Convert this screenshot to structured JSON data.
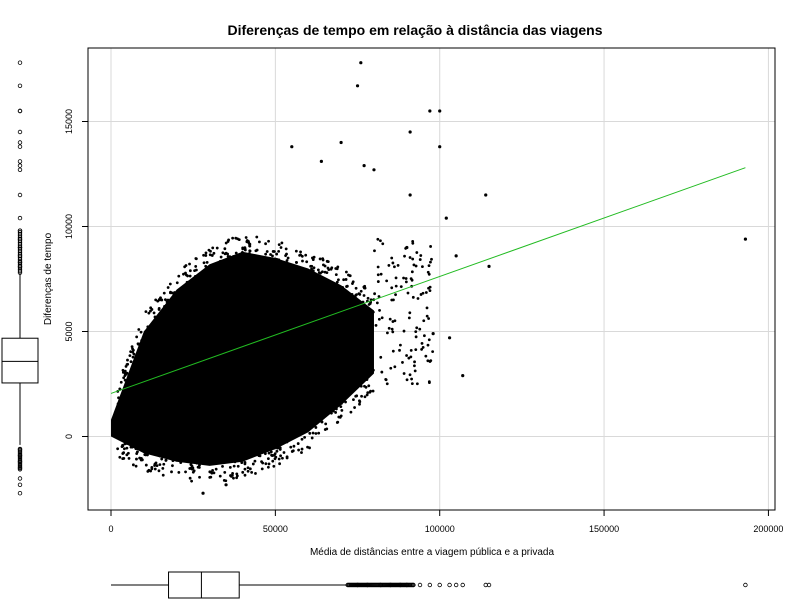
{
  "chart_data": {
    "type": "scatter",
    "title": "Diferenças de tempo em relação à distância das viagens",
    "xlabel": "Média de distâncias entre a viagem pública e a privada",
    "ylabel": "Diferenças de tempo",
    "xlim": [
      -7000,
      202000
    ],
    "ylim": [
      -3500,
      18500
    ],
    "x_ticks": [
      0,
      50000,
      100000,
      150000,
      200000
    ],
    "y_ticks": [
      0,
      5000,
      10000,
      15000
    ],
    "x_tick_labels": [
      "0",
      "50000",
      "100000",
      "150000",
      "200000"
    ],
    "y_tick_labels": [
      "0",
      "5000",
      "10000",
      "15000"
    ],
    "grid": true,
    "dense_cloud": {
      "description_points_x": [
        0,
        10000,
        20000,
        30000,
        40000,
        50000,
        60000,
        70000,
        80000
      ],
      "upper_y": [
        800,
        5000,
        7000,
        8200,
        8800,
        8500,
        8000,
        7200,
        6000
      ],
      "lower_y": [
        0,
        -800,
        -1200,
        -1400,
        -1200,
        -600,
        200,
        1500,
        3000
      ]
    },
    "series": [
      {
        "name": "",
        "values": [
          {
            "x": 76000,
            "y": 17800
          },
          {
            "x": 75000,
            "y": 16700
          },
          {
            "x": 97000,
            "y": 15500
          },
          {
            "x": 100000,
            "y": 15500
          },
          {
            "x": 91000,
            "y": 14500
          },
          {
            "x": 70000,
            "y": 14000
          },
          {
            "x": 55000,
            "y": 13800
          },
          {
            "x": 100000,
            "y": 13800
          },
          {
            "x": 64000,
            "y": 13100
          },
          {
            "x": 77000,
            "y": 12900
          },
          {
            "x": 80000,
            "y": 12700
          },
          {
            "x": 114000,
            "y": 11500
          },
          {
            "x": 91000,
            "y": 11500
          },
          {
            "x": 102000,
            "y": 10400
          },
          {
            "x": 90000,
            "y": 9000
          },
          {
            "x": 105000,
            "y": 8600
          },
          {
            "x": 115000,
            "y": 8100
          },
          {
            "x": 107000,
            "y": 2900
          },
          {
            "x": 98000,
            "y": 4900
          },
          {
            "x": 103000,
            "y": 4700
          },
          {
            "x": 193000,
            "y": 9400
          },
          {
            "x": 28000,
            "y": -2700
          },
          {
            "x": 35000,
            "y": -2300
          }
        ]
      }
    ],
    "trend_line": {
      "color": "#22bb22",
      "points": [
        {
          "x": 0,
          "y": 2050
        },
        {
          "x": 193000,
          "y": 12800
        }
      ]
    },
    "marginal_boxplot_y": {
      "min": -2700,
      "q1": 2550,
      "median": 3580,
      "q3": 4680,
      "max": 17800,
      "whisker_low": -400,
      "whisker_high": 7800,
      "outliers": [
        17800,
        16700,
        15500,
        15500,
        14500,
        14000,
        13800,
        13100,
        12900,
        12700,
        11500,
        10400,
        9800,
        9400,
        9000,
        8600,
        8300,
        8100,
        -600,
        -900,
        -1200,
        -1500,
        -2000,
        -2300,
        -2700
      ]
    },
    "marginal_boxplot_x": {
      "min": 0,
      "q1": 17500,
      "median": 27500,
      "q3": 39000,
      "max": 193000,
      "whisker_low": 0,
      "whisker_high": 72000,
      "outliers": [
        75000,
        78000,
        82000,
        85000,
        88000,
        90000,
        92000,
        94000,
        97000,
        100000,
        103000,
        105000,
        107000,
        114000,
        115000,
        193000
      ]
    }
  }
}
